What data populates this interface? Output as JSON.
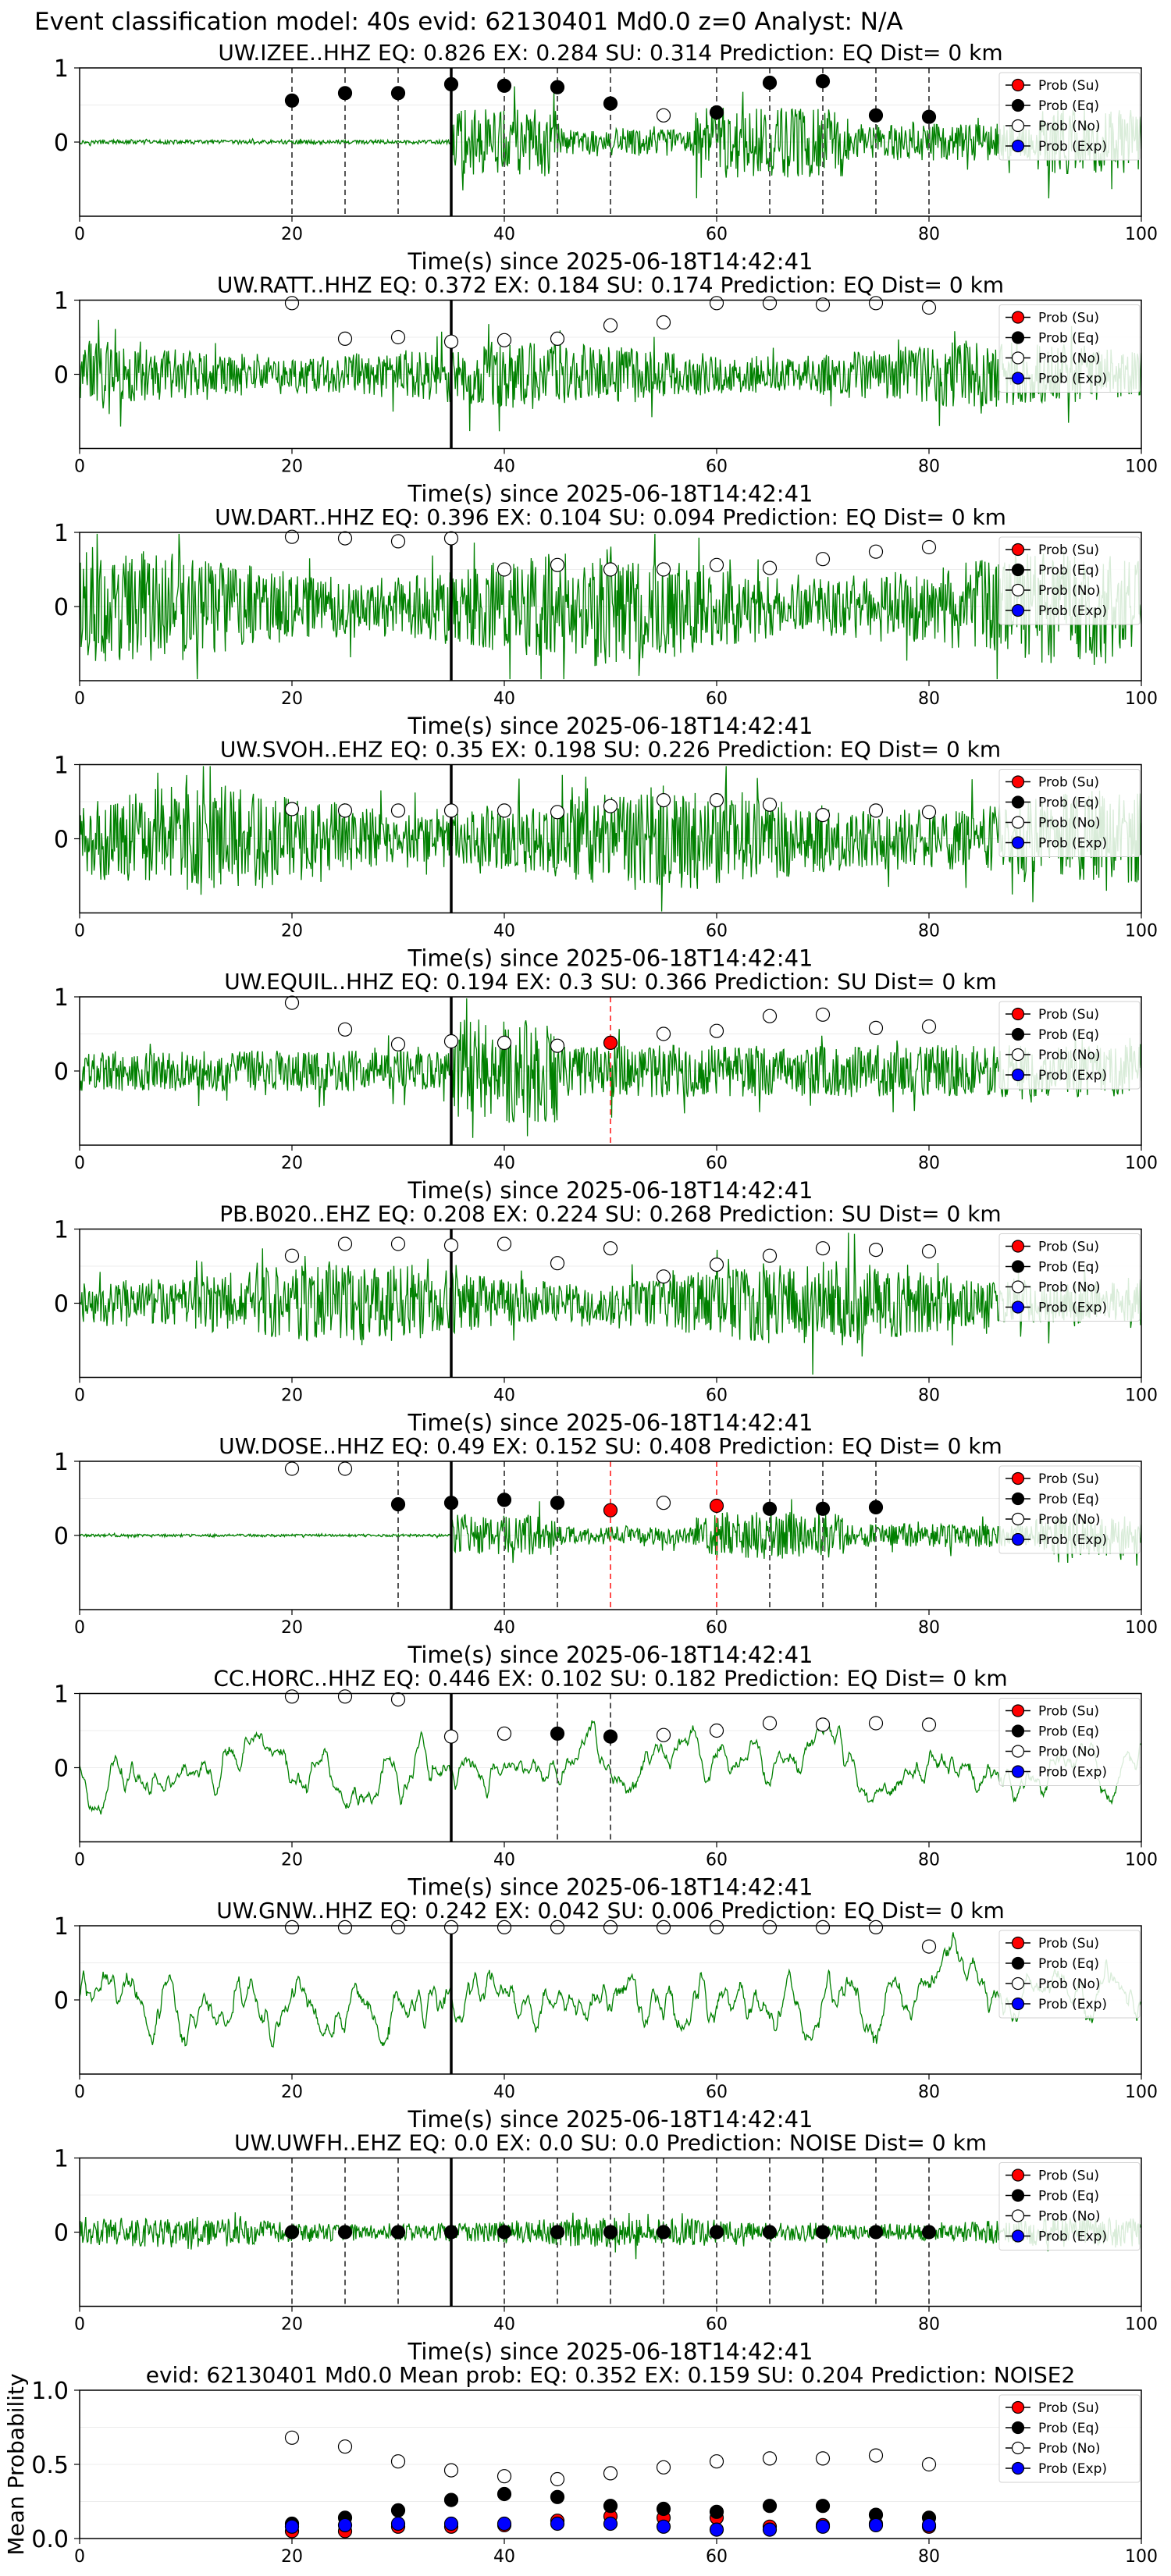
{
  "figure": {
    "suptitle": "Event classification model: 40s evid: 62130401 Md0.0 z=0 Analyst: N/A"
  },
  "legend_labels": [
    "Prob (Su)",
    "Prob (Eq)",
    "Prob (No)",
    "Prob (Exp)"
  ],
  "colors": {
    "waveform": "#008000",
    "su": "#ff0000",
    "eq": "#000000",
    "no": "#ffffff",
    "exp": "#0000ff",
    "pick_line": "#000000",
    "eq_vline": "#555555",
    "su_vline": "#ff4d4d"
  },
  "chart_data": [
    {
      "type": "line",
      "title": "UW.IZEE..HHZ   EQ: 0.826  EX: 0.284  SU: 0.314   Prediction: EQ    Dist= 0 km",
      "xlabel": "Time(s) since 2025-06-18T14:42:41",
      "xlim": [
        0,
        100
      ],
      "ylim": [
        -1,
        1
      ],
      "xticks": [
        "0",
        "20",
        "40",
        "60",
        "80",
        "100"
      ],
      "yticks": [
        "1",
        "0"
      ],
      "pick_time": 35,
      "waveform": {
        "style": "burst",
        "amplitude": 0.55
      },
      "prob_times": [
        20,
        25,
        30,
        35,
        40,
        45,
        50,
        55,
        60,
        65,
        70,
        75,
        80
      ],
      "markers": [
        "eq",
        "eq",
        "eq",
        "eq",
        "eq",
        "eq",
        "eq",
        "no",
        "eq",
        "eq",
        "eq",
        "eq",
        "eq"
      ],
      "marker_values": [
        0.56,
        0.66,
        0.66,
        0.78,
        0.76,
        0.74,
        0.52,
        0.36,
        0.4,
        0.8,
        0.82,
        0.36,
        0.34
      ],
      "eq_vlines": [
        20,
        25,
        30,
        40,
        45,
        50,
        60,
        65,
        70,
        75,
        80
      ],
      "su_vlines": []
    },
    {
      "type": "line",
      "title": "UW.RATT..HHZ   EQ: 0.372  EX: 0.184  SU: 0.174   Prediction: EQ    Dist= 0 km",
      "xlabel": "Time(s) since 2025-06-18T14:42:41",
      "xlim": [
        0,
        100
      ],
      "ylim": [
        -1,
        1
      ],
      "xticks": [
        "0",
        "20",
        "40",
        "60",
        "80",
        "100"
      ],
      "yticks": [
        "1",
        "0"
      ],
      "pick_time": 35,
      "waveform": {
        "style": "noise",
        "amplitude": 0.45
      },
      "prob_times": [
        20,
        25,
        30,
        35,
        40,
        45,
        50,
        55,
        60,
        65,
        70,
        75,
        80
      ],
      "markers": [
        "no",
        "no",
        "no",
        "no",
        "no",
        "no",
        "no",
        "no",
        "no",
        "no",
        "no",
        "no",
        "no"
      ],
      "marker_values": [
        0.96,
        0.48,
        0.5,
        0.44,
        0.46,
        0.48,
        0.66,
        0.7,
        0.96,
        0.96,
        0.94,
        0.96,
        0.9
      ],
      "eq_vlines": [],
      "su_vlines": []
    },
    {
      "type": "line",
      "title": "UW.DART..HHZ   EQ: 0.396  EX: 0.104  SU: 0.094   Prediction: EQ    Dist= 0 km",
      "xlabel": "Time(s) since 2025-06-18T14:42:41",
      "xlim": [
        0,
        100
      ],
      "ylim": [
        -1,
        1
      ],
      "xticks": [
        "0",
        "20",
        "40",
        "60",
        "80",
        "100"
      ],
      "yticks": [
        "1",
        "0"
      ],
      "pick_time": 35,
      "waveform": {
        "style": "noise",
        "amplitude": 0.75
      },
      "prob_times": [
        20,
        25,
        30,
        35,
        40,
        45,
        50,
        55,
        60,
        65,
        70,
        75,
        80
      ],
      "markers": [
        "no",
        "no",
        "no",
        "no",
        "no",
        "no",
        "no",
        "no",
        "no",
        "no",
        "no",
        "no",
        "no"
      ],
      "marker_values": [
        0.94,
        0.92,
        0.88,
        0.92,
        0.5,
        0.56,
        0.5,
        0.5,
        0.56,
        0.52,
        0.64,
        0.74,
        0.8
      ],
      "eq_vlines": [],
      "su_vlines": []
    },
    {
      "type": "line",
      "title": "UW.SVOH..EHZ   EQ: 0.35  EX: 0.198  SU: 0.226   Prediction: EQ    Dist= 0 km",
      "xlabel": "Time(s) since 2025-06-18T14:42:41",
      "xlim": [
        0,
        100
      ],
      "ylim": [
        -1,
        1
      ],
      "xticks": [
        "0",
        "20",
        "40",
        "60",
        "80",
        "100"
      ],
      "yticks": [
        "1",
        "0"
      ],
      "pick_time": 35,
      "waveform": {
        "style": "noise",
        "amplitude": 0.7
      },
      "prob_times": [
        20,
        25,
        30,
        35,
        40,
        45,
        50,
        55,
        60,
        65,
        70,
        75,
        80
      ],
      "markers": [
        "no",
        "no",
        "no",
        "no",
        "no",
        "no",
        "no",
        "no",
        "no",
        "no",
        "no",
        "no",
        "no"
      ],
      "marker_values": [
        0.4,
        0.38,
        0.38,
        0.38,
        0.38,
        0.36,
        0.44,
        0.52,
        0.52,
        0.46,
        0.32,
        0.38,
        0.36
      ],
      "eq_vlines": [],
      "su_vlines": []
    },
    {
      "type": "line",
      "title": "UW.EQUIL..HHZ   EQ: 0.194  EX: 0.3  SU: 0.366   Prediction: SU    Dist= 0 km",
      "xlabel": "Time(s) since 2025-06-18T14:42:41",
      "xlim": [
        0,
        100
      ],
      "ylim": [
        -1,
        1
      ],
      "xticks": [
        "0",
        "20",
        "40",
        "60",
        "80",
        "100"
      ],
      "yticks": [
        "1",
        "0"
      ],
      "pick_time": 35,
      "waveform": {
        "style": "burst2",
        "amplitude": 0.5
      },
      "prob_times": [
        20,
        25,
        30,
        35,
        40,
        45,
        50,
        55,
        60,
        65,
        70,
        75,
        80
      ],
      "markers": [
        "no",
        "no",
        "no",
        "no",
        "no",
        "no",
        "su",
        "no",
        "no",
        "no",
        "no",
        "no",
        "no"
      ],
      "marker_values": [
        0.92,
        0.56,
        0.36,
        0.4,
        0.38,
        0.34,
        0.38,
        0.5,
        0.54,
        0.74,
        0.76,
        0.58,
        0.6
      ],
      "eq_vlines": [],
      "su_vlines": [
        50
      ]
    },
    {
      "type": "line",
      "title": "PB.B020..EHZ   EQ: 0.208  EX: 0.224  SU: 0.268   Prediction: SU    Dist= 0 km",
      "xlabel": "Time(s) since 2025-06-18T14:42:41",
      "xlim": [
        0,
        100
      ],
      "ylim": [
        -1,
        1
      ],
      "xticks": [
        "0",
        "20",
        "40",
        "60",
        "80",
        "100"
      ],
      "yticks": [
        "1",
        "0"
      ],
      "pick_time": 35,
      "waveform": {
        "style": "noise",
        "amplitude": 0.55
      },
      "prob_times": [
        20,
        25,
        30,
        35,
        40,
        45,
        50,
        55,
        60,
        65,
        70,
        75,
        80
      ],
      "markers": [
        "no",
        "no",
        "no",
        "no",
        "no",
        "no",
        "no",
        "no",
        "no",
        "no",
        "no",
        "no",
        "no"
      ],
      "marker_values": [
        0.64,
        0.8,
        0.8,
        0.78,
        0.8,
        0.54,
        0.74,
        0.36,
        0.52,
        0.64,
        0.74,
        0.72,
        0.7
      ],
      "eq_vlines": [],
      "su_vlines": []
    },
    {
      "type": "line",
      "title": "UW.DOSE..HHZ   EQ: 0.49  EX: 0.152  SU: 0.408   Prediction: EQ    Dist= 0 km",
      "xlabel": "Time(s) since 2025-06-18T14:42:41",
      "xlim": [
        0,
        100
      ],
      "ylim": [
        -1,
        1
      ],
      "xticks": [
        "0",
        "20",
        "40",
        "60",
        "80",
        "100"
      ],
      "yticks": [
        "1",
        "0"
      ],
      "pick_time": 35,
      "waveform": {
        "style": "burst",
        "amplitude": 0.35
      },
      "prob_times": [
        20,
        25,
        30,
        35,
        40,
        45,
        50,
        55,
        60,
        65,
        70,
        75,
        80
      ],
      "markers": [
        "no",
        "no",
        "eq",
        "eq",
        "eq",
        "eq",
        "su",
        "no",
        "su",
        "eq",
        "eq",
        "eq",
        null
      ],
      "marker_values": [
        0.9,
        0.9,
        0.42,
        0.44,
        0.48,
        0.44,
        0.34,
        0.44,
        0.4,
        0.36,
        0.36,
        0.38,
        null
      ],
      "eq_vlines": [
        30,
        40,
        45,
        65,
        70,
        75
      ],
      "su_vlines": [
        50,
        60
      ]
    },
    {
      "type": "line",
      "title": "CC.HORC..HHZ   EQ: 0.446  EX: 0.102  SU: 0.182   Prediction: EQ    Dist= 0 km",
      "xlabel": "Time(s) since 2025-06-18T14:42:41",
      "xlim": [
        0,
        100
      ],
      "ylim": [
        -1,
        1
      ],
      "xticks": [
        "0",
        "20",
        "40",
        "60",
        "80",
        "100"
      ],
      "yticks": [
        "1",
        "0"
      ],
      "pick_time": 35,
      "waveform": {
        "style": "smooth",
        "amplitude": 0.7
      },
      "prob_times": [
        20,
        25,
        30,
        35,
        40,
        45,
        50,
        55,
        60,
        65,
        70,
        75,
        80
      ],
      "markers": [
        "no",
        "no",
        "no",
        "no",
        "no",
        "eq",
        "eq",
        "no",
        "no",
        "no",
        "no",
        "no",
        "no"
      ],
      "marker_values": [
        0.96,
        0.96,
        0.92,
        0.42,
        0.46,
        0.46,
        0.42,
        0.44,
        0.5,
        0.6,
        0.58,
        0.6,
        0.58
      ],
      "eq_vlines": [
        45,
        50
      ],
      "su_vlines": []
    },
    {
      "type": "line",
      "title": "UW.GNW..HHZ   EQ: 0.242  EX: 0.042  SU: 0.006   Prediction: EQ    Dist= 0 km",
      "xlabel": "Time(s) since 2025-06-18T14:42:41",
      "xlim": [
        0,
        100
      ],
      "ylim": [
        -1,
        1
      ],
      "xticks": [
        "0",
        "20",
        "40",
        "60",
        "80",
        "100"
      ],
      "yticks": [
        "1",
        "0"
      ],
      "pick_time": 35,
      "waveform": {
        "style": "smooth",
        "amplitude": 0.85
      },
      "prob_times": [
        20,
        25,
        30,
        35,
        40,
        45,
        50,
        55,
        60,
        65,
        70,
        75,
        80
      ],
      "markers": [
        "no",
        "no",
        "no",
        "no",
        "no",
        "no",
        "no",
        "no",
        "no",
        "no",
        "no",
        "no",
        "no"
      ],
      "marker_values": [
        0.98,
        0.98,
        0.98,
        0.98,
        0.98,
        0.98,
        0.98,
        0.98,
        0.98,
        0.98,
        0.98,
        0.98,
        0.72
      ],
      "eq_vlines": [],
      "su_vlines": []
    },
    {
      "type": "line",
      "title": "UW.UWFH..EHZ   EQ: 0.0  EX: 0.0  SU: 0.0   Prediction: NOISE    Dist= 0 km",
      "xlabel": "Time(s) since 2025-06-18T14:42:41",
      "xlim": [
        0,
        100
      ],
      "ylim": [
        -1,
        1
      ],
      "xticks": [
        "0",
        "20",
        "40",
        "60",
        "80",
        "100"
      ],
      "yticks": [
        "1",
        "0"
      ],
      "pick_time": 35,
      "waveform": {
        "style": "noise",
        "amplitude": 0.2
      },
      "prob_times": [
        20,
        25,
        30,
        35,
        40,
        45,
        50,
        55,
        60,
        65,
        70,
        75,
        80
      ],
      "markers": [
        "eq",
        "eq",
        "eq",
        "eq",
        "eq",
        "eq",
        "eq",
        "eq",
        "eq",
        "eq",
        "eq",
        "eq",
        "eq"
      ],
      "marker_values": [
        0,
        0,
        0,
        0,
        0,
        0,
        0,
        0,
        0,
        0,
        0,
        0,
        0
      ],
      "eq_vlines": [
        20,
        25,
        30,
        40,
        45,
        50,
        55,
        60,
        65,
        70,
        75,
        80
      ],
      "su_vlines": []
    },
    {
      "type": "scatter",
      "title": "evid: 62130401   Md0.0   Mean prob:   EQ: 0.352   EX: 0.159   SU: 0.204   Prediction: NOISE2",
      "ylabel": "Mean Probability",
      "xlim": [
        0,
        100
      ],
      "ylim": [
        0,
        1
      ],
      "xticks": [
        "0",
        "20",
        "40",
        "60",
        "80",
        "100"
      ],
      "yticks": [
        "1.0",
        "0.5",
        "0.0"
      ],
      "x": [
        20,
        25,
        30,
        35,
        40,
        45,
        50,
        55,
        60,
        65,
        70,
        75,
        80
      ],
      "series": [
        {
          "name": "Prob (Su)",
          "key": "su",
          "values": [
            0.05,
            0.05,
            0.08,
            0.08,
            0.09,
            0.12,
            0.15,
            0.14,
            0.14,
            0.08,
            0.09,
            0.1,
            0.08
          ]
        },
        {
          "name": "Prob (Eq)",
          "key": "eq",
          "values": [
            0.1,
            0.14,
            0.19,
            0.26,
            0.3,
            0.28,
            0.22,
            0.2,
            0.18,
            0.22,
            0.22,
            0.16,
            0.14
          ]
        },
        {
          "name": "Prob (No)",
          "key": "no",
          "values": [
            0.68,
            0.62,
            0.52,
            0.46,
            0.42,
            0.4,
            0.44,
            0.48,
            0.52,
            0.54,
            0.54,
            0.56,
            0.5
          ]
        },
        {
          "name": "Prob (Exp)",
          "key": "exp",
          "values": [
            0.08,
            0.09,
            0.1,
            0.1,
            0.1,
            0.1,
            0.1,
            0.08,
            0.06,
            0.06,
            0.08,
            0.09,
            0.09
          ]
        }
      ]
    }
  ]
}
